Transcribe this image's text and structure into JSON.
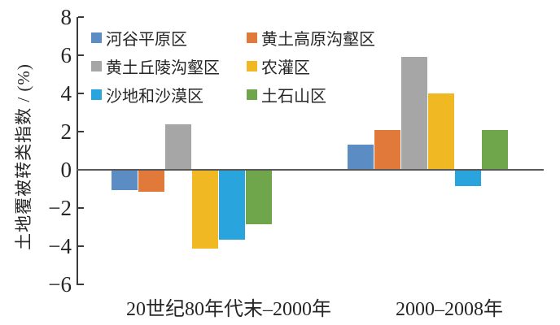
{
  "chart_data": {
    "type": "bar",
    "title": "",
    "xlabel": "",
    "ylabel": "土地覆被转类指数 / (%)",
    "ylim": [
      -6,
      8
    ],
    "yticks": [
      8,
      6,
      4,
      2,
      0,
      -2,
      -4,
      -6
    ],
    "grid": false,
    "legend_position": "top-left-two-columns",
    "categories": [
      "20世纪80年代末–2000年",
      "2000–2008年"
    ],
    "series": [
      {
        "name": "河谷平原区",
        "color": "#5B8DC4",
        "values": [
          -1.0,
          1.3
        ]
      },
      {
        "name": "黄土高原沟壑区",
        "color": "#E1793B",
        "values": [
          -1.1,
          2.1
        ]
      },
      {
        "name": "黄土丘陵沟壑区",
        "color": "#A6A6A6",
        "values": [
          2.4,
          5.9
        ]
      },
      {
        "name": "农灌区",
        "color": "#F0B822",
        "values": [
          -4.1,
          4.0
        ]
      },
      {
        "name": "沙地和沙漠区",
        "color": "#2AA4DC",
        "values": [
          -3.6,
          -0.8
        ]
      },
      {
        "name": "土石山区",
        "color": "#70A64B",
        "values": [
          -2.8,
          2.1
        ]
      }
    ]
  },
  "colors": {
    "axis": "#3a3a3a",
    "zero_line": "#595959",
    "text": "#262626"
  }
}
